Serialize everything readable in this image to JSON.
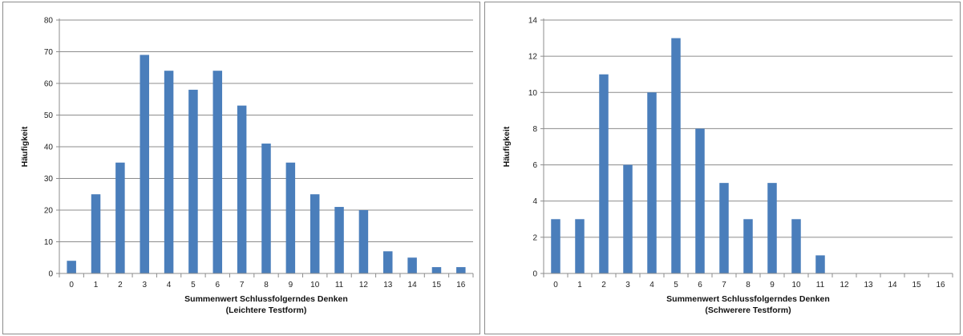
{
  "colors": {
    "bar": "#4a7ebb",
    "grid": "#8c8c8c",
    "axis": "#8c8c8c",
    "text": "#222222"
  },
  "chart_data": [
    {
      "type": "bar",
      "title": "",
      "xlabel": "Summenwert Schlussfolgerndes Denken",
      "xlabel2": "(Leichtere Testform)",
      "ylabel": "Häufigkeit",
      "categories": [
        "0",
        "1",
        "2",
        "3",
        "4",
        "5",
        "6",
        "7",
        "8",
        "9",
        "10",
        "11",
        "12",
        "13",
        "14",
        "15",
        "16"
      ],
      "values": [
        4,
        25,
        35,
        69,
        64,
        58,
        64,
        53,
        41,
        35,
        25,
        21,
        20,
        7,
        5,
        2,
        2
      ],
      "ylim": [
        0,
        80
      ],
      "yticks": [
        "0",
        "10",
        "20",
        "30",
        "40",
        "50",
        "60",
        "70",
        "80"
      ],
      "grid": true,
      "legend": "none"
    },
    {
      "type": "bar",
      "title": "",
      "xlabel": "Summenwert Schlussfolgerndes Denken",
      "xlabel2": "(Schwerere Testform)",
      "ylabel": "Häufigkeit",
      "categories": [
        "0",
        "1",
        "2",
        "3",
        "4",
        "5",
        "6",
        "7",
        "8",
        "9",
        "10",
        "11",
        "12",
        "13",
        "14",
        "15",
        "16"
      ],
      "values": [
        3,
        3,
        11,
        6,
        10,
        13,
        8,
        5,
        3,
        5,
        3,
        1,
        0,
        0,
        0,
        0,
        0
      ],
      "ylim": [
        0,
        14
      ],
      "yticks": [
        "0",
        "2",
        "4",
        "6",
        "8",
        "10",
        "12",
        "14"
      ],
      "grid": true,
      "legend": "none"
    }
  ]
}
